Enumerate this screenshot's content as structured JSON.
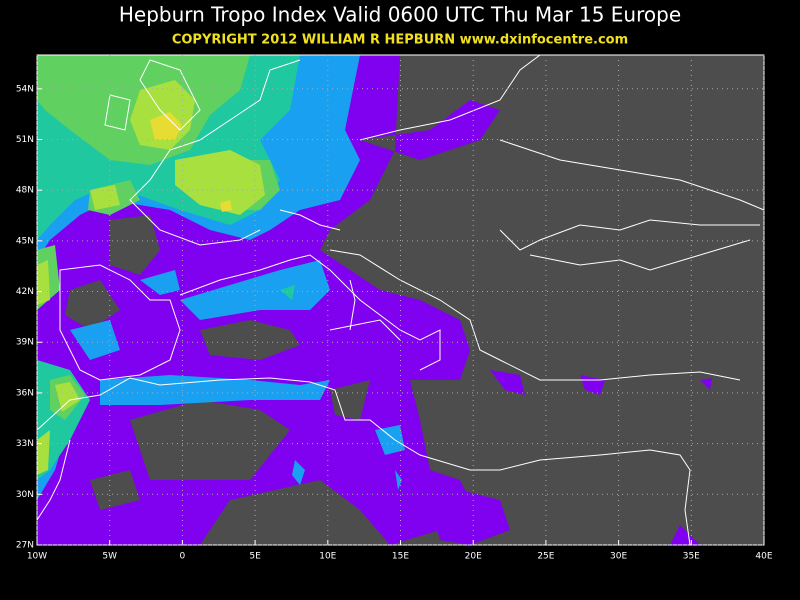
{
  "header": {
    "title": "Hepburn Tropo Index Valid 0600 UTC Thu Mar 15 Europe",
    "copyright": "COPYRIGHT 2012   WILLIAM R HEPBURN   www.dxinfocentre.com"
  },
  "map": {
    "xlim": [
      -10,
      40
    ],
    "ylim": [
      27,
      56
    ],
    "xticks": [
      {
        "value": -10,
        "label": "10W"
      },
      {
        "value": -5,
        "label": "5W"
      },
      0,
      {
        "value": 5,
        "label": "5E"
      },
      {
        "value": 10,
        "label": "10E"
      },
      {
        "value": 15,
        "label": "15E"
      },
      {
        "value": 20,
        "label": "20E"
      },
      {
        "value": 25,
        "label": "25E"
      },
      {
        "value": 30,
        "label": "30E"
      },
      {
        "value": 35,
        "label": "35E"
      },
      {
        "value": 40,
        "label": "40E"
      }
    ],
    "yticks": [
      {
        "value": 27,
        "label": "27N"
      },
      {
        "value": 30,
        "label": "30N"
      },
      {
        "value": 33,
        "label": "33N"
      },
      {
        "value": 36,
        "label": "36N"
      },
      {
        "value": 39,
        "label": "39N"
      },
      {
        "value": 42,
        "label": "42N"
      },
      {
        "value": 45,
        "label": "45N"
      },
      {
        "value": 48,
        "label": "48N"
      },
      {
        "value": 51,
        "label": "51N"
      },
      {
        "value": 54,
        "label": "54N"
      }
    ]
  }
}
